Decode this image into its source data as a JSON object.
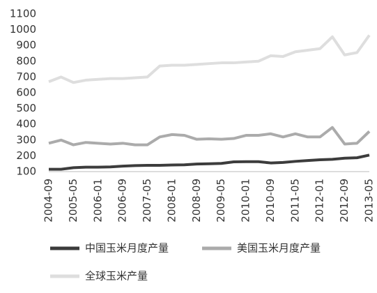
{
  "chart_data": {
    "type": "line",
    "categories": [
      "2004-09",
      null,
      "2005-05",
      null,
      "2006-01",
      null,
      "2006-09",
      null,
      "2007-05",
      null,
      "2008-01",
      null,
      "2008-09",
      null,
      "2009-05",
      null,
      "2010-01",
      null,
      "2010-09",
      null,
      "2011-05",
      null,
      "2012-01",
      null,
      "2012-09",
      null,
      "2013-05"
    ],
    "series": [
      {
        "name": "中国玉米月度产量",
        "color": "#3c3c3c",
        "values": [
          115,
          115,
          125,
          128,
          128,
          130,
          135,
          138,
          140,
          140,
          142,
          143,
          148,
          150,
          152,
          162,
          163,
          163,
          155,
          158,
          165,
          170,
          175,
          178,
          185,
          188,
          205
        ]
      },
      {
        "name": "美国玉米月度产量",
        "color": "#ababab",
        "values": [
          280,
          300,
          270,
          285,
          280,
          275,
          280,
          270,
          270,
          320,
          335,
          330,
          305,
          308,
          305,
          310,
          330,
          330,
          340,
          320,
          340,
          320,
          320,
          380,
          275,
          280,
          355
        ]
      },
      {
        "name": "全球玉米产量",
        "color": "#dedede",
        "values": [
          670,
          700,
          665,
          680,
          685,
          690,
          690,
          695,
          700,
          770,
          775,
          775,
          780,
          785,
          790,
          790,
          795,
          800,
          835,
          830,
          860,
          870,
          880,
          955,
          840,
          855,
          965
        ]
      }
    ],
    "ylim": [
      100,
      1100
    ],
    "yticks": [
      100,
      200,
      300,
      400,
      500,
      600,
      700,
      800,
      900,
      1000,
      1100
    ]
  }
}
